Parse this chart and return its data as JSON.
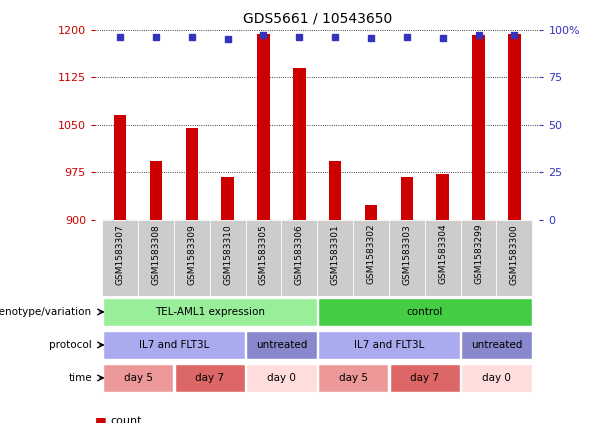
{
  "title": "GDS5661 / 10543650",
  "samples": [
    "GSM1583307",
    "GSM1583308",
    "GSM1583309",
    "GSM1583310",
    "GSM1583305",
    "GSM1583306",
    "GSM1583301",
    "GSM1583302",
    "GSM1583303",
    "GSM1583304",
    "GSM1583299",
    "GSM1583300"
  ],
  "counts": [
    1065,
    993,
    1045,
    968,
    1193,
    1140,
    993,
    923,
    968,
    972,
    1192,
    1193
  ],
  "percentile_y": [
    1188,
    1188,
    1188,
    1185,
    1192,
    1188,
    1188,
    1186,
    1188,
    1186,
    1192,
    1192
  ],
  "ylim_left": [
    900,
    1200
  ],
  "ylim_right": [
    0,
    100
  ],
  "yticks_left": [
    900,
    975,
    1050,
    1125,
    1200
  ],
  "yticks_right": [
    0,
    25,
    50,
    75,
    100
  ],
  "bar_color": "#cc0000",
  "dot_color": "#3333bb",
  "bar_width": 0.35,
  "genotype_row": [
    {
      "label": "TEL-AML1 expression",
      "start": 0,
      "end": 6,
      "color": "#99ee99"
    },
    {
      "label": "control",
      "start": 6,
      "end": 12,
      "color": "#44cc44"
    }
  ],
  "protocol_row": [
    {
      "label": "IL7 and FLT3L",
      "start": 0,
      "end": 4,
      "color": "#aaaaee"
    },
    {
      "label": "untreated",
      "start": 4,
      "end": 6,
      "color": "#8888cc"
    },
    {
      "label": "IL7 and FLT3L",
      "start": 6,
      "end": 10,
      "color": "#aaaaee"
    },
    {
      "label": "untreated",
      "start": 10,
      "end": 12,
      "color": "#8888cc"
    }
  ],
  "time_row": [
    {
      "label": "day 5",
      "start": 0,
      "end": 2,
      "color": "#ee9999"
    },
    {
      "label": "day 7",
      "start": 2,
      "end": 4,
      "color": "#dd6666"
    },
    {
      "label": "day 0",
      "start": 4,
      "end": 6,
      "color": "#ffdddd"
    },
    {
      "label": "day 5",
      "start": 6,
      "end": 8,
      "color": "#ee9999"
    },
    {
      "label": "day 7",
      "start": 8,
      "end": 10,
      "color": "#dd6666"
    },
    {
      "label": "day 0",
      "start": 10,
      "end": 12,
      "color": "#ffdddd"
    }
  ],
  "xlabel_color": "#cc0000",
  "ylabel_right_color": "#3333bb",
  "row_labels": [
    "genotype/variation",
    "protocol",
    "time"
  ],
  "legend_count_color": "#cc0000",
  "legend_dot_color": "#3333bb"
}
